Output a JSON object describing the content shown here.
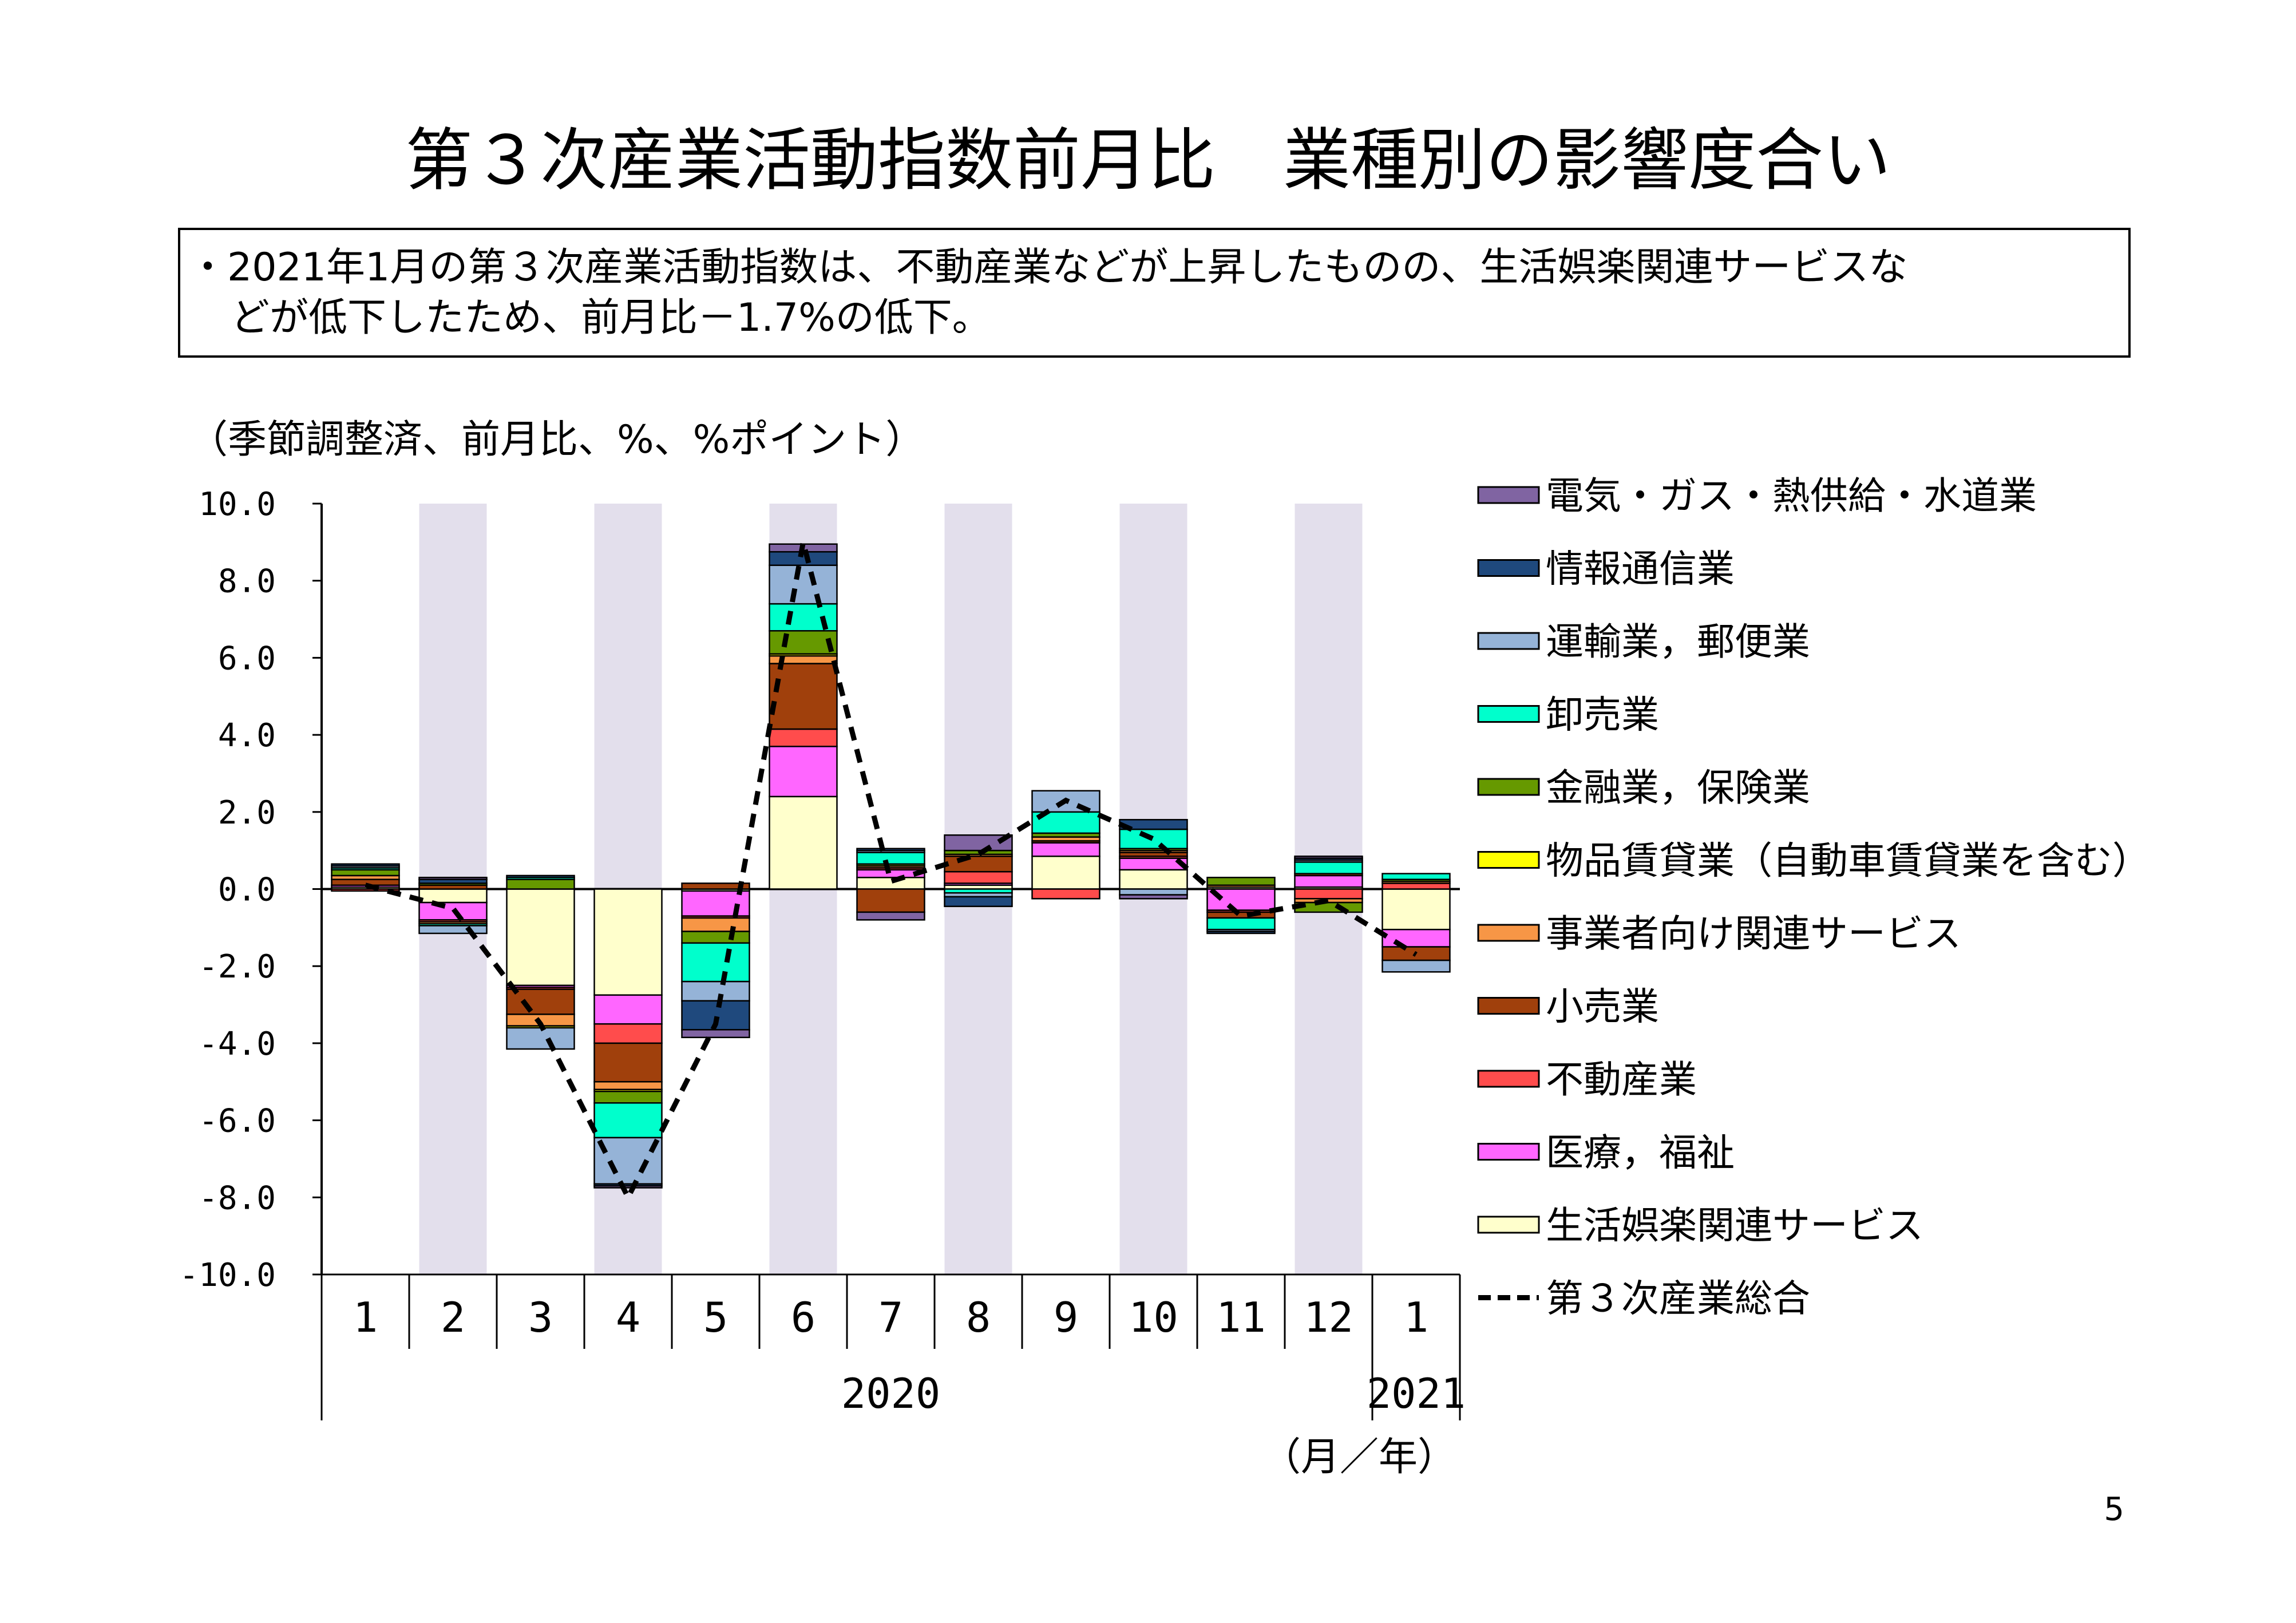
{
  "slide": {
    "title": "第３次産業活動指数前月比　業種別の影響度合い",
    "summary_line1": "・2021年1月の第３次産業活動指数は、不動産業などが上昇したものの、生活娯楽関連サービスな",
    "summary_line2": "どが低下したため、前月比－1.7%の低下。",
    "unit_note": "（季節調整済、前月比、%、%ポイント）",
    "month_year_label": "（月／年）",
    "page_number": "5"
  },
  "chart_data": {
    "type": "bar",
    "stacked": true,
    "ylim": [
      -10,
      10
    ],
    "yticks": [
      "10.0",
      "8.0",
      "6.0",
      "4.0",
      "2.0",
      "0.0",
      "-2.0",
      "-4.0",
      "-6.0",
      "-8.0",
      "-10.0"
    ],
    "categories": [
      "1",
      "2",
      "3",
      "4",
      "5",
      "6",
      "7",
      "8",
      "9",
      "10",
      "11",
      "12",
      "1"
    ],
    "year_labels": [
      {
        "label": "2020",
        "from": 1,
        "to": 11
      },
      {
        "label": "2021",
        "from": 12,
        "to": 12
      }
    ],
    "shaded_categories": [
      1,
      3,
      5,
      7,
      9,
      11
    ],
    "legend_position": "right",
    "series": [
      {
        "name": "生活娯楽関連サービス",
        "color": "#FFFFCC",
        "values": [
          0.05,
          -0.35,
          -2.5,
          -2.75,
          -0.05,
          2.4,
          0.3,
          0.1,
          0.85,
          0.5,
          0.05,
          0.05,
          -1.05
        ]
      },
      {
        "name": "医療，福祉",
        "color": "#FF66FF",
        "values": [
          0.05,
          -0.45,
          -0.05,
          -0.75,
          -0.65,
          1.3,
          0.2,
          0.05,
          0.35,
          0.3,
          -0.55,
          0.3,
          -0.45
        ]
      },
      {
        "name": "不動産業",
        "color": "#FF4C4C",
        "values": [
          -0.05,
          -0.05,
          -0.05,
          -0.5,
          -0.05,
          0.45,
          0.05,
          0.3,
          -0.25,
          0.05,
          -0.05,
          -0.25,
          0.15
        ]
      },
      {
        "name": "小売業",
        "color": "#A0400C",
        "values": [
          0.15,
          0.1,
          -0.65,
          -1.0,
          0.15,
          1.7,
          -0.6,
          0.4,
          0.05,
          0.1,
          -0.15,
          0.05,
          -0.35
        ]
      },
      {
        "name": "事業者向け関連サービス",
        "color": "#F79646",
        "values": [
          0.1,
          -0.05,
          -0.3,
          -0.2,
          -0.35,
          0.2,
          0.05,
          0.05,
          0.1,
          0.05,
          0.05,
          -0.1,
          0.05
        ]
      },
      {
        "name": "物品賃貸業（自動車賃貸業を含む）",
        "color": "#FFFF00",
        "values": [
          0.0,
          0.0,
          -0.05,
          -0.05,
          0.0,
          0.05,
          0.0,
          0.0,
          0.0,
          0.0,
          0.0,
          0.0,
          0.0
        ]
      },
      {
        "name": "金融業，保険業",
        "color": "#669900",
        "values": [
          0.15,
          0.05,
          0.25,
          -0.3,
          -0.3,
          0.6,
          0.05,
          0.1,
          0.1,
          0.05,
          0.2,
          -0.25,
          0.05
        ]
      },
      {
        "name": "卸売業",
        "color": "#00FFCC",
        "values": [
          0.05,
          -0.05,
          0.05,
          -0.9,
          -1.0,
          0.7,
          0.3,
          -0.1,
          0.55,
          0.5,
          -0.3,
          0.3,
          0.15
        ]
      },
      {
        "name": "運輸業，郵便業",
        "color": "#95B3D7",
        "values": [
          0.05,
          -0.2,
          -0.55,
          -1.2,
          -0.5,
          1.0,
          0.05,
          -0.1,
          0.55,
          -0.15,
          -0.05,
          0.05,
          -0.3
        ]
      },
      {
        "name": "情報通信業",
        "color": "#1F497D",
        "values": [
          0.05,
          0.1,
          0.05,
          -0.05,
          -0.75,
          0.35,
          0.05,
          -0.25,
          0.0,
          0.25,
          -0.05,
          0.05,
          0.0
        ]
      },
      {
        "name": "電気・ガス・熱供給・水道業",
        "color": "#8064A2",
        "values": [
          0.0,
          0.05,
          0.0,
          -0.05,
          -0.2,
          0.2,
          -0.2,
          0.4,
          0.0,
          -0.1,
          0.0,
          0.05,
          0.0
        ]
      }
    ],
    "total_series": {
      "name": "第３次産業総合",
      "values": [
        0.1,
        -0.5,
        -3.5,
        -8.0,
        -3.5,
        9.0,
        0.2,
        0.9,
        2.3,
        1.3,
        -0.7,
        -0.3,
        -1.7
      ]
    }
  }
}
